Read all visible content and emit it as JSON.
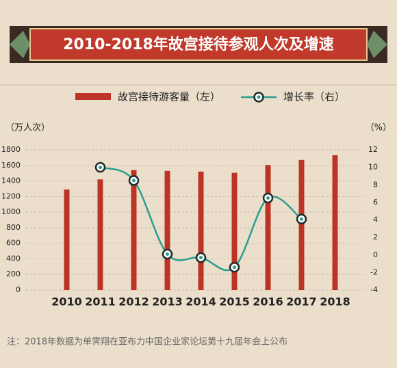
{
  "chart_data": {
    "type": "bar-line",
    "title": "2010-2018年故宫接待参观人次及增速",
    "y_label": "（万人次）",
    "y2_label": "（%）",
    "note": "注：2018年数据为单霁翔在亚布力中国企业家论坛第十九届年会上公布",
    "categories": [
      "2010",
      "2011",
      "2012",
      "2013",
      "2014",
      "2015",
      "2016",
      "2017",
      "2018"
    ],
    "series": [
      {
        "name": "故宫接待游客量（左）",
        "type": "bar",
        "color": "#bd3427",
        "values": [
          1290,
          1420,
          1540,
          1530,
          1520,
          1505,
          1605,
          1670,
          1730
        ]
      },
      {
        "name": "增长率（右）",
        "type": "line",
        "axis": "y2",
        "color": "#2a9d8f",
        "values": [
          null,
          10,
          8.5,
          0.1,
          -0.3,
          -1.4,
          6.5,
          4.1,
          null
        ]
      }
    ],
    "ylim": [
      0,
      1800
    ],
    "yticks": [
      0,
      200,
      400,
      600,
      800,
      1000,
      1200,
      1400,
      1600,
      1800
    ],
    "y2lim": [
      -4,
      12
    ],
    "y2ticks": [
      -4,
      -2,
      0,
      2,
      4,
      6,
      8,
      10,
      12
    ],
    "grid": true
  }
}
